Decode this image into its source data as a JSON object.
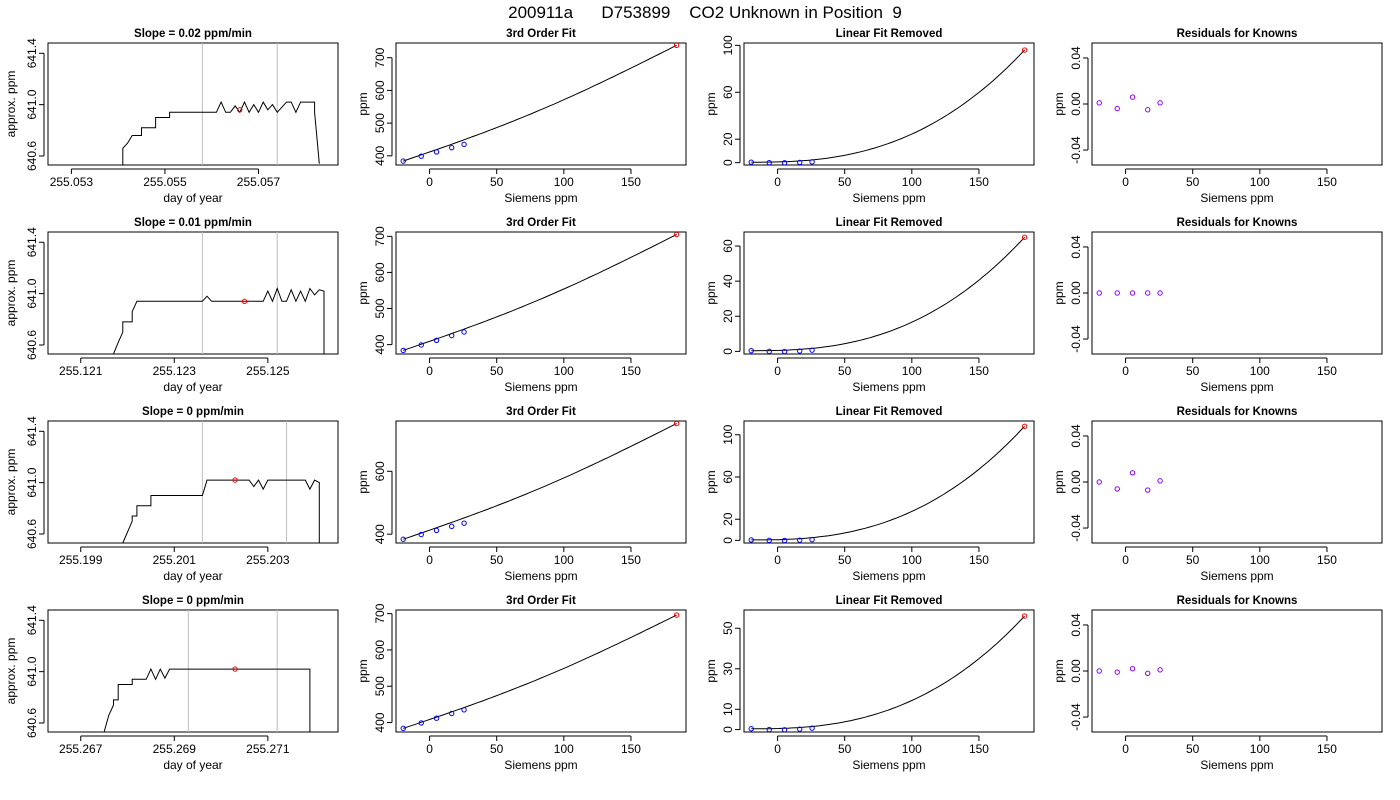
{
  "figure_title": "200911a      D753899    CO2 Unknown in Position  9",
  "chart_data": [
    {
      "type": "line",
      "row": 0,
      "kind": "timeseries",
      "title": "Slope =  0.02  ppm/min",
      "xlabel": "day of year",
      "ylabel": "approx. ppm",
      "xlim": [
        255.0525,
        255.0587
      ],
      "ylim": [
        640.53,
        641.48
      ],
      "xticks": [
        "255.053",
        "255.055",
        "255.057"
      ],
      "xtick_values": [
        255.053,
        255.055,
        255.057
      ],
      "yticks": [
        "640.6",
        "641.0",
        "641.4"
      ],
      "ytick_values": [
        640.6,
        641.0,
        641.4
      ],
      "vlines": [
        255.0558,
        255.0574
      ],
      "x": [
        255.0534,
        255.0541,
        255.0541,
        255.0542,
        255.0543,
        255.0545,
        255.0545,
        255.0548,
        255.0548,
        255.0551,
        255.0551,
        255.0555,
        255.0558,
        255.0561,
        255.0562,
        255.0563,
        255.0564,
        255.0565,
        255.0566,
        255.0567,
        255.0568,
        255.0569,
        255.057,
        255.0571,
        255.0572,
        255.0573,
        255.0574,
        255.0575,
        255.0576,
        255.0577,
        255.0578,
        255.0579,
        255.058,
        255.0581,
        255.0582,
        255.0582,
        255.0583
      ],
      "values": [
        640.5,
        640.52,
        640.66,
        640.7,
        640.76,
        640.76,
        640.82,
        640.82,
        640.9,
        640.9,
        640.94,
        640.94,
        640.94,
        640.94,
        641.02,
        640.94,
        640.94,
        640.99,
        640.94,
        641.02,
        640.94,
        641.0,
        640.94,
        641.02,
        640.96,
        641.0,
        640.94,
        640.98,
        641.02,
        641.02,
        640.94,
        641.02,
        641.02,
        641.02,
        641.02,
        640.94,
        640.54
      ],
      "marker": {
        "x": 255.0566,
        "y": 640.96,
        "color": "#ff0000"
      }
    },
    {
      "type": "line",
      "row": 0,
      "kind": "fit",
      "title": "3rd Order Fit",
      "xlabel": "Siemens ppm",
      "ylabel": "ppm",
      "xlim": [
        -25,
        191
      ],
      "ylim": [
        372,
        745
      ],
      "xticks": [
        "0",
        "50",
        "100",
        "150"
      ],
      "xtick_values": [
        0,
        50,
        100,
        150
      ],
      "yticks": [
        "400",
        "500",
        "600",
        "700"
      ],
      "ytick_values": [
        400,
        500,
        600,
        700
      ],
      "points_x": [
        -19.6,
        -6.2,
        5.2,
        16.5,
        25.7
      ],
      "points_y": [
        384,
        399,
        412,
        425,
        435
      ],
      "point_color": "#0000ff",
      "line_x": [
        -19.6,
        184
      ],
      "line_y": [
        384,
        738
      ],
      "unknown": {
        "x": 184,
        "y": 738,
        "color": "#ff0000"
      }
    },
    {
      "type": "line",
      "row": 0,
      "kind": "linfit",
      "title": "Linear Fit Removed",
      "xlabel": "Siemens ppm",
      "ylabel": "ppm",
      "xlim": [
        -25,
        191
      ],
      "ylim": [
        -2,
        102
      ],
      "xticks": [
        "0",
        "50",
        "100",
        "150"
      ],
      "xtick_values": [
        0,
        50,
        100,
        150
      ],
      "yticks": [
        "0",
        "20",
        "60",
        "100"
      ],
      "ytick_values": [
        0,
        20,
        60,
        100
      ],
      "points_x": [
        -19.6,
        -6.2,
        5.2,
        16.5,
        25.7
      ],
      "points_y": [
        0.4,
        0.0,
        -0.1,
        0.2,
        0.7
      ],
      "point_color": "#0000ff",
      "line_x": [
        -19.6,
        184
      ],
      "line_y": [
        0.4,
        96
      ],
      "unknown": {
        "x": 184,
        "y": 96,
        "color": "#ff0000"
      }
    },
    {
      "type": "scatter",
      "row": 0,
      "kind": "resid",
      "title": "Residuals for Knowns",
      "xlabel": "Siemens ppm",
      "ylabel": "ppm",
      "xlim": [
        -25,
        191
      ],
      "ylim": [
        -0.053,
        0.053
      ],
      "xticks": [
        "0",
        "50",
        "100",
        "150"
      ],
      "xtick_values": [
        0,
        50,
        100,
        150
      ],
      "yticks": [
        "-0.04",
        "0.00",
        "0.04"
      ],
      "ytick_values": [
        -0.04,
        0.0,
        0.04
      ],
      "points_x": [
        -19.6,
        -6.2,
        5.2,
        16.5,
        25.7
      ],
      "points_y": [
        0.001,
        -0.004,
        0.006,
        -0.005,
        0.001
      ],
      "point_color": "#8800ff"
    },
    {
      "type": "line",
      "row": 1,
      "kind": "timeseries",
      "title": "Slope =  0.01  ppm/min",
      "xlabel": "day of year",
      "ylabel": "approx. ppm",
      "xlim": [
        255.1203,
        255.1265
      ],
      "ylim": [
        640.53,
        641.48
      ],
      "xticks": [
        "255.121",
        "255.123",
        "255.125"
      ],
      "xtick_values": [
        255.121,
        255.123,
        255.125
      ],
      "yticks": [
        "640.6",
        "641.0",
        "641.4"
      ],
      "ytick_values": [
        640.6,
        641.0,
        641.4
      ],
      "vlines": [
        255.1236,
        255.1252
      ],
      "x": [
        255.1217,
        255.1218,
        255.1219,
        255.1219,
        255.1221,
        255.1221,
        255.1222,
        255.123,
        255.1236,
        255.1237,
        255.1238,
        255.1249,
        255.125,
        255.1251,
        255.1252,
        255.1253,
        255.1254,
        255.1255,
        255.1256,
        255.1257,
        255.1258,
        255.1259,
        255.126,
        255.1261,
        255.1262,
        255.1262
      ],
      "values": [
        640.53,
        640.62,
        640.7,
        640.78,
        640.78,
        640.86,
        640.94,
        640.94,
        640.94,
        640.98,
        640.94,
        640.94,
        641.02,
        640.94,
        641.04,
        640.94,
        640.94,
        641.03,
        640.94,
        641.02,
        640.94,
        641.04,
        640.99,
        641.03,
        641.02,
        640.53
      ],
      "marker": {
        "x": 255.1245,
        "y": 640.94,
        "color": "#ff0000"
      }
    },
    {
      "type": "line",
      "row": 1,
      "kind": "fit",
      "title": "3rd Order Fit",
      "xlabel": "Siemens ppm",
      "ylabel": "ppm",
      "xlim": [
        -25,
        191
      ],
      "ylim": [
        374,
        712
      ],
      "xticks": [
        "0",
        "50",
        "100",
        "150"
      ],
      "xtick_values": [
        0,
        50,
        100,
        150
      ],
      "yticks": [
        "400",
        "500",
        "600",
        "700"
      ],
      "ytick_values": [
        400,
        500,
        600,
        700
      ],
      "points_x": [
        -19.6,
        -6.2,
        5.2,
        16.5,
        25.7
      ],
      "points_y": [
        384,
        399,
        412,
        425,
        435
      ],
      "point_color": "#0000ff",
      "line_x": [
        -19.6,
        184
      ],
      "line_y": [
        384,
        705
      ],
      "unknown": {
        "x": 184,
        "y": 705,
        "color": "#ff0000"
      }
    },
    {
      "type": "line",
      "row": 1,
      "kind": "linfit",
      "title": "Linear Fit Removed",
      "xlabel": "Siemens ppm",
      "ylabel": "ppm",
      "xlim": [
        -25,
        191
      ],
      "ylim": [
        -1.5,
        68
      ],
      "xticks": [
        "0",
        "50",
        "100",
        "150"
      ],
      "xtick_values": [
        0,
        50,
        100,
        150
      ],
      "yticks": [
        "0",
        "20",
        "40",
        "60"
      ],
      "ytick_values": [
        0,
        20,
        40,
        60
      ],
      "points_x": [
        -19.6,
        -6.2,
        5.2,
        16.5,
        25.7
      ],
      "points_y": [
        0.4,
        0.0,
        -0.1,
        0.2,
        0.7
      ],
      "point_color": "#0000ff",
      "line_x": [
        -19.6,
        184
      ],
      "line_y": [
        0.4,
        65
      ],
      "unknown": {
        "x": 184,
        "y": 65,
        "color": "#ff0000"
      }
    },
    {
      "type": "scatter",
      "row": 1,
      "kind": "resid",
      "title": "Residuals for Knowns",
      "xlabel": "Siemens ppm",
      "ylabel": "ppm",
      "xlim": [
        -25,
        191
      ],
      "ylim": [
        -0.053,
        0.053
      ],
      "xticks": [
        "0",
        "50",
        "100",
        "150"
      ],
      "xtick_values": [
        0,
        50,
        100,
        150
      ],
      "yticks": [
        "-0.04",
        "0.00",
        "0.04"
      ],
      "ytick_values": [
        -0.04,
        0.0,
        0.04
      ],
      "points_x": [
        -19.6,
        -6.2,
        5.2,
        16.5,
        25.7
      ],
      "points_y": [
        0.0,
        0.0,
        0.0,
        0.0,
        0.0
      ],
      "point_color": "#8800ff"
    },
    {
      "type": "line",
      "row": 2,
      "kind": "timeseries",
      "title": "Slope =  0  ppm/min",
      "xlabel": "day of year",
      "ylabel": "approx. ppm",
      "xlim": [
        255.1983,
        255.2045
      ],
      "ylim": [
        640.53,
        641.48
      ],
      "xticks": [
        "255.199",
        "255.201",
        "255.203"
      ],
      "xtick_values": [
        255.199,
        255.201,
        255.203
      ],
      "yticks": [
        "640.6",
        "641.0",
        "641.4"
      ],
      "ytick_values": [
        640.6,
        641.0,
        641.4
      ],
      "vlines": [
        255.2016,
        255.2034
      ],
      "x": [
        255.1999,
        255.2001,
        255.2001,
        255.2002,
        255.2002,
        255.2005,
        255.2005,
        255.2016,
        255.2017,
        255.2026,
        255.2027,
        255.2028,
        255.2029,
        255.203,
        255.2031,
        255.2038,
        255.2039,
        255.204,
        255.2041,
        255.2041
      ],
      "values": [
        640.53,
        640.7,
        640.74,
        640.74,
        640.82,
        640.82,
        640.9,
        640.9,
        641.02,
        641.02,
        640.97,
        641.02,
        640.95,
        641.02,
        641.02,
        641.02,
        640.95,
        641.02,
        641.0,
        640.53
      ],
      "marker": {
        "x": 255.2023,
        "y": 641.02,
        "color": "#ff0000"
      }
    },
    {
      "type": "line",
      "row": 2,
      "kind": "fit",
      "title": "3rd Order Fit",
      "xlabel": "Siemens ppm",
      "ylabel": "ppm",
      "xlim": [
        -25,
        191
      ],
      "ylim": [
        372,
        760
      ],
      "xticks": [
        "0",
        "50",
        "100",
        "150"
      ],
      "xtick_values": [
        0,
        50,
        100,
        150
      ],
      "yticks": [
        "400",
        "600"
      ],
      "ytick_values": [
        400,
        600
      ],
      "points_x": [
        -19.6,
        -6.2,
        5.2,
        16.5,
        25.7
      ],
      "points_y": [
        384,
        399,
        412,
        425,
        435
      ],
      "point_color": "#0000ff",
      "line_x": [
        -19.6,
        184
      ],
      "line_y": [
        384,
        752
      ],
      "unknown": {
        "x": 184,
        "y": 752,
        "color": "#ff0000"
      }
    },
    {
      "type": "line",
      "row": 2,
      "kind": "linfit",
      "title": "Linear Fit Removed",
      "xlabel": "Siemens ppm",
      "ylabel": "ppm",
      "xlim": [
        -25,
        191
      ],
      "ylim": [
        -2.5,
        113
      ],
      "xticks": [
        "0",
        "50",
        "100",
        "150"
      ],
      "xtick_values": [
        0,
        50,
        100,
        150
      ],
      "yticks": [
        "0",
        "20",
        "60",
        "100"
      ],
      "ytick_values": [
        0,
        20,
        60,
        100
      ],
      "points_x": [
        -19.6,
        -6.2,
        5.2,
        16.5,
        25.7
      ],
      "points_y": [
        0.4,
        0.0,
        -0.1,
        0.2,
        0.7
      ],
      "point_color": "#0000ff",
      "line_x": [
        -19.6,
        184
      ],
      "line_y": [
        0.4,
        108
      ],
      "unknown": {
        "x": 184,
        "y": 108,
        "color": "#ff0000"
      }
    },
    {
      "type": "scatter",
      "row": 2,
      "kind": "resid",
      "title": "Residuals for Knowns",
      "xlabel": "Siemens ppm",
      "ylabel": "ppm",
      "xlim": [
        -25,
        191
      ],
      "ylim": [
        -0.053,
        0.053
      ],
      "xticks": [
        "0",
        "50",
        "100",
        "150"
      ],
      "xtick_values": [
        0,
        50,
        100,
        150
      ],
      "yticks": [
        "-0.04",
        "0.00",
        "0.04"
      ],
      "ytick_values": [
        -0.04,
        0.0,
        0.04
      ],
      "points_x": [
        -19.6,
        -6.2,
        5.2,
        16.5,
        25.7
      ],
      "points_y": [
        0.0,
        -0.006,
        0.008,
        -0.007,
        0.001
      ],
      "point_color": "#8800ff"
    },
    {
      "type": "line",
      "row": 3,
      "kind": "timeseries",
      "title": "Slope =  0  ppm/min",
      "xlabel": "day of year",
      "ylabel": "approx. ppm",
      "xlim": [
        255.2663,
        255.2725
      ],
      "ylim": [
        640.53,
        641.48
      ],
      "xticks": [
        "255.267",
        "255.269",
        "255.271"
      ],
      "xtick_values": [
        255.267,
        255.269,
        255.271
      ],
      "yticks": [
        "640.6",
        "641.0",
        "641.4"
      ],
      "ytick_values": [
        640.6,
        641.0,
        641.4
      ],
      "vlines": [
        255.2693,
        255.2712
      ],
      "x": [
        255.2675,
        255.2676,
        255.2677,
        255.2677,
        255.2678,
        255.2678,
        255.2681,
        255.2681,
        255.2684,
        255.2685,
        255.2686,
        255.2687,
        255.2688,
        255.2689,
        255.2693,
        255.2719,
        255.2719
      ],
      "values": [
        640.53,
        640.66,
        640.74,
        640.78,
        640.78,
        640.9,
        640.9,
        640.94,
        640.94,
        641.02,
        640.94,
        641.02,
        640.95,
        641.02,
        641.02,
        641.02,
        640.53
      ],
      "marker": {
        "x": 255.2703,
        "y": 641.02,
        "color": "#ff0000"
      }
    },
    {
      "type": "line",
      "row": 3,
      "kind": "fit",
      "title": "3rd Order Fit",
      "xlabel": "Siemens ppm",
      "ylabel": "ppm",
      "xlim": [
        -25,
        191
      ],
      "ylim": [
        374,
        710
      ],
      "xticks": [
        "0",
        "50",
        "100",
        "150"
      ],
      "xtick_values": [
        0,
        50,
        100,
        150
      ],
      "yticks": [
        "400",
        "500",
        "600",
        "700"
      ],
      "ytick_values": [
        400,
        500,
        600,
        700
      ],
      "points_x": [
        -19.6,
        -6.2,
        5.2,
        16.5,
        25.7
      ],
      "points_y": [
        384,
        399,
        412,
        425,
        435
      ],
      "point_color": "#0000ff",
      "line_x": [
        -19.6,
        184
      ],
      "line_y": [
        384,
        696
      ],
      "unknown": {
        "x": 184,
        "y": 696,
        "color": "#ff0000"
      }
    },
    {
      "type": "line",
      "row": 3,
      "kind": "linfit",
      "title": "Linear Fit Removed",
      "xlabel": "Siemens ppm",
      "ylabel": "ppm",
      "xlim": [
        -25,
        191
      ],
      "ylim": [
        -1.2,
        59
      ],
      "xticks": [
        "0",
        "50",
        "100",
        "150"
      ],
      "xtick_values": [
        0,
        50,
        100,
        150
      ],
      "yticks": [
        "0",
        "10",
        "30",
        "50"
      ],
      "ytick_values": [
        0,
        10,
        30,
        50
      ],
      "points_x": [
        -19.6,
        -6.2,
        5.2,
        16.5,
        25.7
      ],
      "points_y": [
        0.4,
        0.0,
        -0.1,
        0.2,
        0.7
      ],
      "point_color": "#0000ff",
      "line_x": [
        -19.6,
        184
      ],
      "line_y": [
        0.4,
        56
      ],
      "unknown": {
        "x": 184,
        "y": 56,
        "color": "#ff0000"
      }
    },
    {
      "type": "scatter",
      "row": 3,
      "kind": "resid",
      "title": "Residuals for Knowns",
      "xlabel": "Siemens ppm",
      "ylabel": "ppm",
      "xlim": [
        -25,
        191
      ],
      "ylim": [
        -0.053,
        0.053
      ],
      "xticks": [
        "0",
        "50",
        "100",
        "150"
      ],
      "xtick_values": [
        0,
        50,
        100,
        150
      ],
      "yticks": [
        "-0.04",
        "0.00",
        "0.04"
      ],
      "ytick_values": [
        -0.04,
        0.0,
        0.04
      ],
      "points_x": [
        -19.6,
        -6.2,
        5.2,
        16.5,
        25.7
      ],
      "points_y": [
        0.0,
        -0.001,
        0.002,
        -0.002,
        0.001
      ],
      "point_color": "#8800ff"
    }
  ]
}
